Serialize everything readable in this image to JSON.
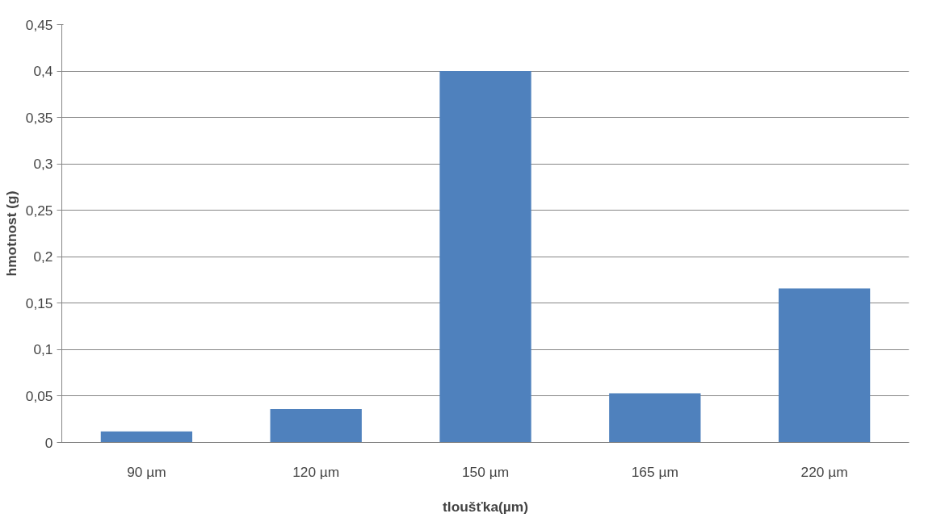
{
  "chart_data": {
    "type": "bar",
    "xlabel": "tloušťka(µm)",
    "ylabel": "hmotnost (g)",
    "categories": [
      "90 µm",
      "120 µm",
      "150 µm",
      "165 µm",
      "220 µm"
    ],
    "values": [
      0.012,
      0.036,
      0.4,
      0.053,
      0.166
    ],
    "color": "#4f81bd",
    "ylim": [
      0,
      0.45
    ],
    "yticks": [
      0,
      {
        "value": 0.05,
        "label": "0,05"
      },
      {
        "value": 0.1,
        "label": "0,1"
      },
      {
        "value": 0.15,
        "label": "0,15"
      },
      {
        "value": 0.2,
        "label": "0,2"
      },
      {
        "value": 0.25,
        "label": "0,25"
      },
      {
        "value": 0.3,
        "label": "0,3"
      },
      {
        "value": 0.35,
        "label": "0,35"
      },
      {
        "value": 0.4,
        "label": "0,4"
      },
      {
        "value": 0.45,
        "label": "0,45"
      }
    ],
    "grid": "y"
  }
}
